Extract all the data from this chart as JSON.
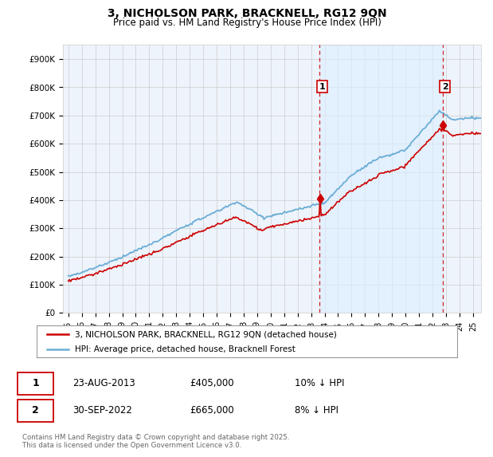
{
  "title": "3, NICHOLSON PARK, BRACKNELL, RG12 9QN",
  "subtitle": "Price paid vs. HM Land Registry's House Price Index (HPI)",
  "ylim": [
    0,
    950000
  ],
  "yticks": [
    0,
    100000,
    200000,
    300000,
    400000,
    500000,
    600000,
    700000,
    800000,
    900000
  ],
  "ytick_labels": [
    "£0",
    "£100K",
    "£200K",
    "£300K",
    "£400K",
    "£500K",
    "£600K",
    "£700K",
    "£800K",
    "£900K"
  ],
  "hpi_color": "#6baed6",
  "hpi_fill_color": "#ddeeff",
  "price_color": "#cc0000",
  "dashed_line_color": "#cc0000",
  "bg_color": "#ffffff",
  "plot_bg_color": "#eef4fb",
  "shade_between_color": "#ddeeff",
  "grid_color": "#cccccc",
  "sale_1_year_float": 2013.64,
  "sale_2_year_float": 2022.75,
  "sale_1": {
    "date_label": "23-AUG-2013",
    "price": 405000,
    "hpi_diff": "10% ↓ HPI",
    "marker": "1"
  },
  "sale_2": {
    "date_label": "30-SEP-2022",
    "price": 665000,
    "hpi_diff": "8% ↓ HPI",
    "marker": "2"
  },
  "legend_line1": "3, NICHOLSON PARK, BRACKNELL, RG12 9QN (detached house)",
  "legend_line2": "HPI: Average price, detached house, Bracknell Forest",
  "footer": "Contains HM Land Registry data © Crown copyright and database right 2025.\nThis data is licensed under the Open Government Licence v3.0.",
  "xmin": 1995,
  "xmax": 2025
}
